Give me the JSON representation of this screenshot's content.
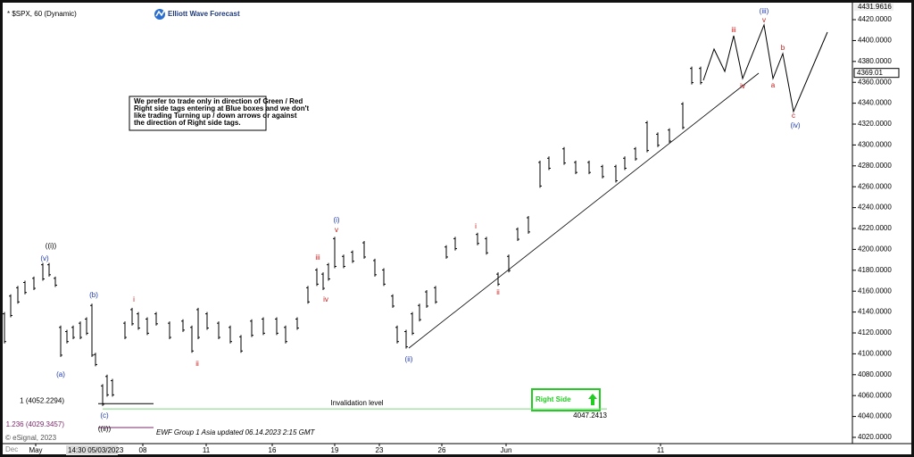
{
  "chart_data": {
    "type": "hilo",
    "title": "* $SPX, 60 (Dynamic)",
    "brand": "Elliott Wave Forecast",
    "note": [
      "We prefer to trade only in direction of Green / Red",
      "Right side tags entering at Blue boxes and we don't",
      "like trading Turning up / down arrows or against",
      "the direction of Right side tags."
    ],
    "footer": "EWF Group 1 Asia updated 06.14.2023 2:15 GMT",
    "copyright": "© eSignal, 2023",
    "cursor_label": "14:30 05/03/2023",
    "first_label": "Dec",
    "color": "#000000",
    "x": [
      1,
      2.4,
      4,
      5.6,
      7.6,
      9.6,
      11,
      12.4,
      13.6,
      15,
      16.4,
      18,
      19.4,
      20.6,
      21.4,
      23,
      24,
      25.2,
      28,
      29.6,
      31,
      33,
      35,
      38,
      41,
      43,
      44.4,
      46.4,
      49,
      51.6,
      54,
      56.4,
      59,
      62,
      64,
      66.6,
      69,
      71,
      72.4,
      73.6,
      75,
      77,
      79,
      81.6,
      84,
      86,
      88,
      89,
      91,
      92.4,
      94,
      95.6,
      97.6,
      100,
      102,
      107,
      109,
      111.6,
      114,
      116,
      118.4,
      121,
      123,
      126.4,
      129,
      132,
      135,
      138,
      140,
      142.4,
      145,
      147.4,
      150,
      153,
      155,
      157
    ],
    "high": [
      4140,
      4157,
      4165,
      4170,
      4174,
      4187,
      4187,
      4174,
      4127,
      4123,
      4127,
      4131,
      4135,
      4148,
      4101,
      4071,
      4080,
      4076,
      4131,
      4144,
      4140,
      4135,
      4140,
      4131,
      4133,
      4127,
      4144,
      4140,
      4131,
      4127,
      4118,
      4133,
      4135,
      4135,
      4127,
      4135,
      4165,
      4182,
      4178,
      4187,
      4212,
      4195,
      4199,
      4208,
      4191,
      4182,
      4157,
      4127,
      4123,
      4140,
      4148,
      4161,
      4165,
      4204,
      4212,
      4216,
      4212,
      4178,
      4195,
      4221,
      4232,
      4285,
      4289,
      4298,
      4285,
      4285,
      4281,
      4281,
      4289,
      4298,
      4323,
      4312,
      4316,
      4341,
      4375,
      4375
    ],
    "low": [
      4110,
      4135,
      4148,
      4157,
      4161,
      4170,
      4174,
      4164,
      4097,
      4110,
      4114,
      4114,
      4118,
      4097,
      4088,
      4050,
      4059,
      4059,
      4114,
      4127,
      4123,
      4118,
      4127,
      4114,
      4121,
      4101,
      4114,
      4123,
      4114,
      4110,
      4101,
      4116,
      4118,
      4118,
      4110,
      4123,
      4148,
      4165,
      4161,
      4170,
      4182,
      4182,
      4187,
      4191,
      4174,
      4165,
      4144,
      4110,
      4105,
      4118,
      4131,
      4144,
      4148,
      4191,
      4199,
      4204,
      4195,
      4165,
      4178,
      4208,
      4215,
      4259,
      4276,
      4281,
      4272,
      4272,
      4268,
      4264,
      4276,
      4285,
      4293,
      4298,
      4302,
      4315,
      4358,
      4358
    ],
    "xlim": [
      0,
      191
    ],
    "xticks": [
      {
        "value": 8,
        "label": "May"
      },
      {
        "value": 32,
        "label": "08"
      },
      {
        "value": 46.2,
        "label": "11"
      },
      {
        "value": 61,
        "label": "16"
      },
      {
        "value": 75,
        "label": "19"
      },
      {
        "value": 85,
        "label": "23"
      },
      {
        "value": 99,
        "label": "26"
      },
      {
        "value": 113.4,
        "label": "Jun"
      },
      {
        "value": 148,
        "label": "11"
      }
    ],
    "ylim": [
      4014,
      4432
    ],
    "yticks": [
      {
        "value": 4020,
        "label": "4020.0000"
      },
      {
        "value": 4040,
        "label": "4040.0000"
      },
      {
        "value": 4060,
        "label": "4060.0000"
      },
      {
        "value": 4080,
        "label": "4080.0000"
      },
      {
        "value": 4100,
        "label": "4100.0000"
      },
      {
        "value": 4120,
        "label": "4120.0000"
      },
      {
        "value": 4140,
        "label": "4140.0000"
      },
      {
        "value": 4160,
        "label": "4160.0000"
      },
      {
        "value": 4180,
        "label": "4180.0000"
      },
      {
        "value": 4200,
        "label": "4200.0000"
      },
      {
        "value": 4220,
        "label": "4220.0000"
      },
      {
        "value": 4240,
        "label": "4240.0000"
      },
      {
        "value": 4260,
        "label": "4260.0000"
      },
      {
        "value": 4280,
        "label": "4280.0000"
      },
      {
        "value": 4300,
        "label": "4300.0000"
      },
      {
        "value": 4320,
        "label": "4320.0000"
      },
      {
        "value": 4340,
        "label": "4340.0000"
      },
      {
        "value": 4360,
        "label": "4360.0000"
      },
      {
        "value": 4380,
        "label": "4380.0000"
      },
      {
        "value": 4400,
        "label": "4400.0000"
      },
      {
        "value": 4420,
        "label": "4420.0000"
      }
    ],
    "high_marker": 4431.9616,
    "last_price": 4369.01,
    "levels": [
      {
        "label": "1 (4052.2294)",
        "value": 4052.2294,
        "color": "#000000"
      },
      {
        "label": "1.236 (4029.3457)",
        "value": 4029.3457,
        "color": "#7a2a6a"
      }
    ],
    "invalidation": {
      "label": "Invalidation level",
      "value": 4047.2413,
      "color": "#7cd67c"
    },
    "right_side": {
      "label": "Right Side",
      "color": "#22cc22"
    },
    "wave_labels": [
      {
        "text": "((i))",
        "color": "#000000"
      },
      {
        "text": "(v)",
        "color": "#1f3ab0"
      },
      {
        "text": "(b)",
        "color": "#1f3ab0"
      },
      {
        "text": "(a)",
        "color": "#1f3ab0"
      },
      {
        "text": "i",
        "color": "#c01818"
      },
      {
        "text": "ii",
        "color": "#c01818"
      },
      {
        "text": "(c)",
        "color": "#1f3ab0"
      },
      {
        "text": "((ii))",
        "color": "#000000"
      },
      {
        "text": "(i)",
        "color": "#1f3ab0"
      },
      {
        "text": "v",
        "color": "#c01818"
      },
      {
        "text": "iii",
        "color": "#c01818"
      },
      {
        "text": "iv",
        "color": "#c01818"
      },
      {
        "text": "(ii)",
        "color": "#1f3ab0"
      },
      {
        "text": "i",
        "color": "#c01818"
      },
      {
        "text": "ii",
        "color": "#c01818"
      },
      {
        "text": "iii",
        "color": "#c01818"
      },
      {
        "text": "(iii)",
        "color": "#1f3ab0"
      },
      {
        "text": "v",
        "color": "#c01818"
      },
      {
        "text": "iv",
        "color": "#c01818"
      },
      {
        "text": "b",
        "color": "#c01818"
      },
      {
        "text": "a",
        "color": "#c01818"
      },
      {
        "text": "c",
        "color": "#c01818"
      },
      {
        "text": "(iv)",
        "color": "#1f3ab0"
      }
    ]
  }
}
